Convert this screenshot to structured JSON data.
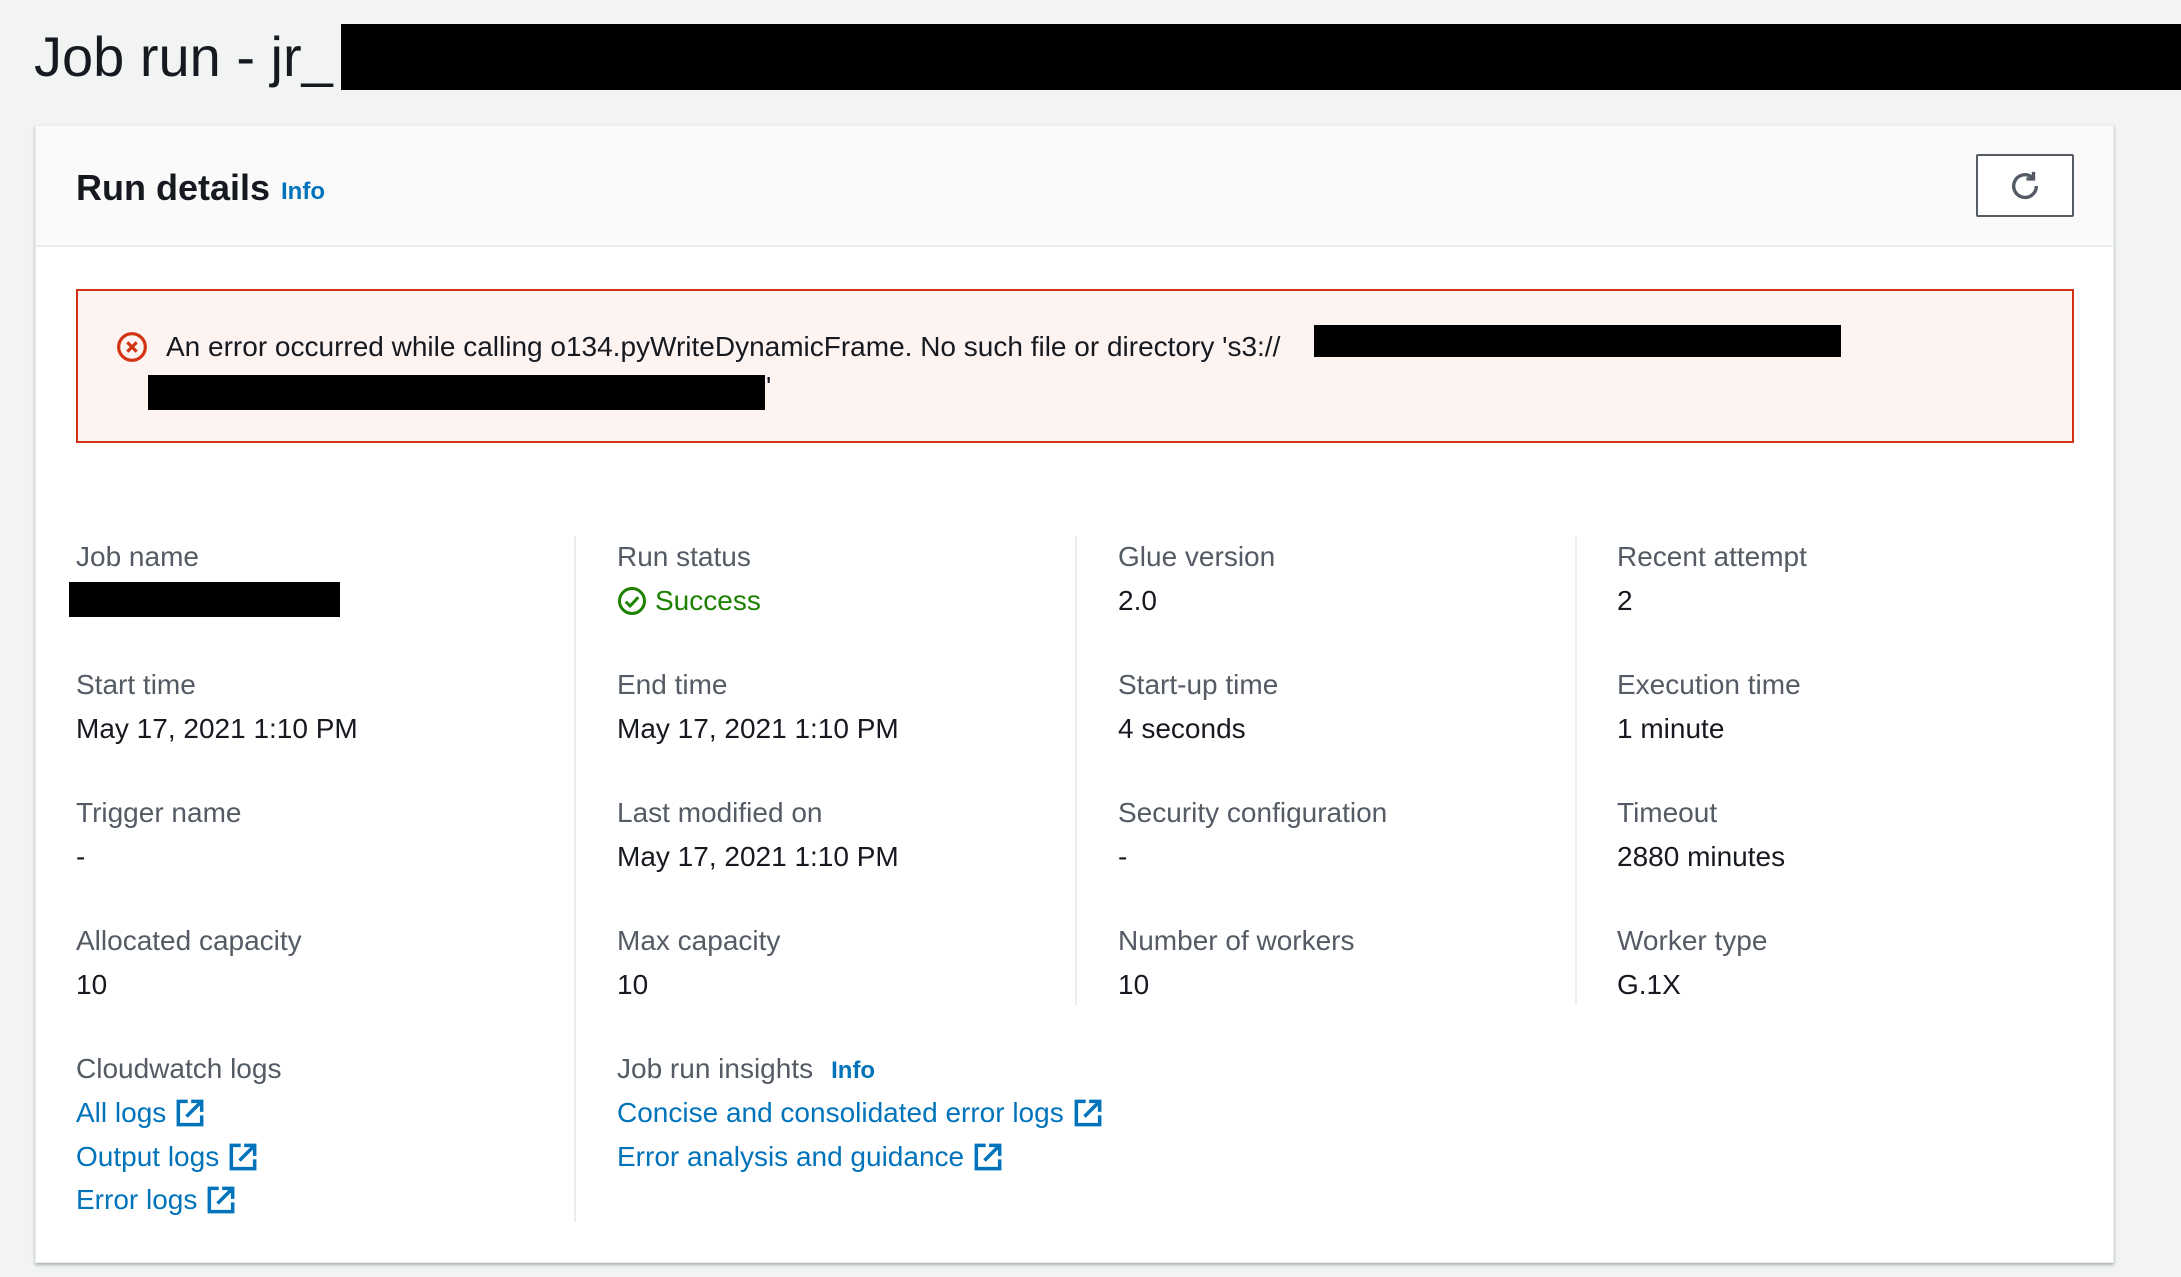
{
  "page": {
    "title": "Job run - jr_"
  },
  "card": {
    "title": "Run details",
    "info": "Info",
    "alert": {
      "message": "An error occurred while calling o134.pyWriteDynamicFrame. No such file or directory 's3://",
      "suffix": "'"
    },
    "fields": [
      {
        "label": "Job name",
        "value": ""
      },
      {
        "label": "Run status",
        "value": "Success"
      },
      {
        "label": "Glue version",
        "value": "2.0"
      },
      {
        "label": "Recent attempt",
        "value": "2"
      },
      {
        "label": "Start time",
        "value": "May 17, 2021 1:10 PM"
      },
      {
        "label": "End time",
        "value": "May 17, 2021 1:10 PM"
      },
      {
        "label": "Start-up time",
        "value": "4 seconds"
      },
      {
        "label": "Execution time",
        "value": "1 minute"
      },
      {
        "label": "Trigger name",
        "value": "-"
      },
      {
        "label": "Last modified on",
        "value": "May 17, 2021 1:10 PM"
      },
      {
        "label": "Security configuration",
        "value": "-"
      },
      {
        "label": "Timeout",
        "value": "2880 minutes"
      },
      {
        "label": "Allocated capacity",
        "value": "10"
      },
      {
        "label": "Max capacity",
        "value": "10"
      },
      {
        "label": "Number of workers",
        "value": "10"
      },
      {
        "label": "Worker type",
        "value": "G.1X"
      }
    ],
    "cloudwatch": {
      "label": "Cloudwatch logs",
      "links": [
        "All logs",
        "Output logs",
        "Error logs"
      ]
    },
    "insights": {
      "label": "Job run insights",
      "info": "Info",
      "links": [
        "Concise and consolidated error logs",
        "Error analysis and guidance"
      ]
    }
  },
  "colors": {
    "link": "#0073bb",
    "error": "#d13212",
    "success": "#1d8102"
  }
}
